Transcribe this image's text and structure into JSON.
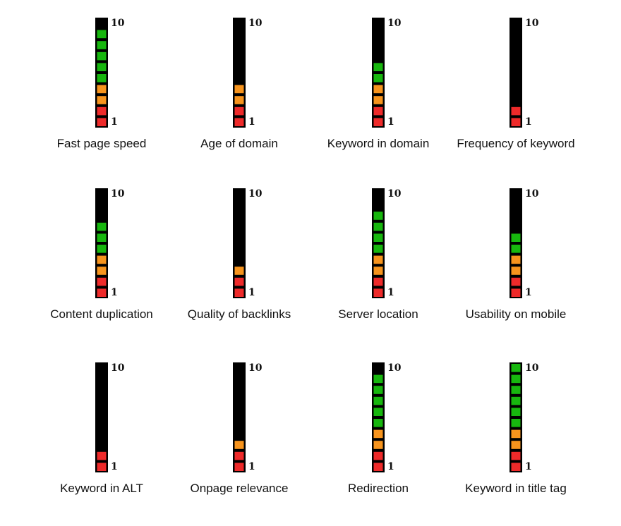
{
  "chart_data": {
    "type": "meter",
    "categories": [
      "Fast page speed",
      "Age of domain",
      "Keyword in domain",
      "Frequency of keyword",
      "Content duplication",
      "Quality of backlinks",
      "Server location",
      "Usability on mobile",
      "Keyword in ALT",
      "Onpage relevance",
      "Redirection",
      "Keyword in title tag"
    ],
    "values": [
      9,
      4,
      6,
      2,
      7,
      3,
      8,
      6,
      2,
      3,
      9,
      10
    ],
    "ylim": [
      1,
      10
    ],
    "yticks": [
      1,
      10
    ],
    "color_bands": [
      {
        "upto": 2,
        "color": "#ee2a2a"
      },
      {
        "upto": 4,
        "color": "#f7941d"
      },
      {
        "upto": 10,
        "color": "#17b70e"
      }
    ],
    "background": "#000000"
  }
}
